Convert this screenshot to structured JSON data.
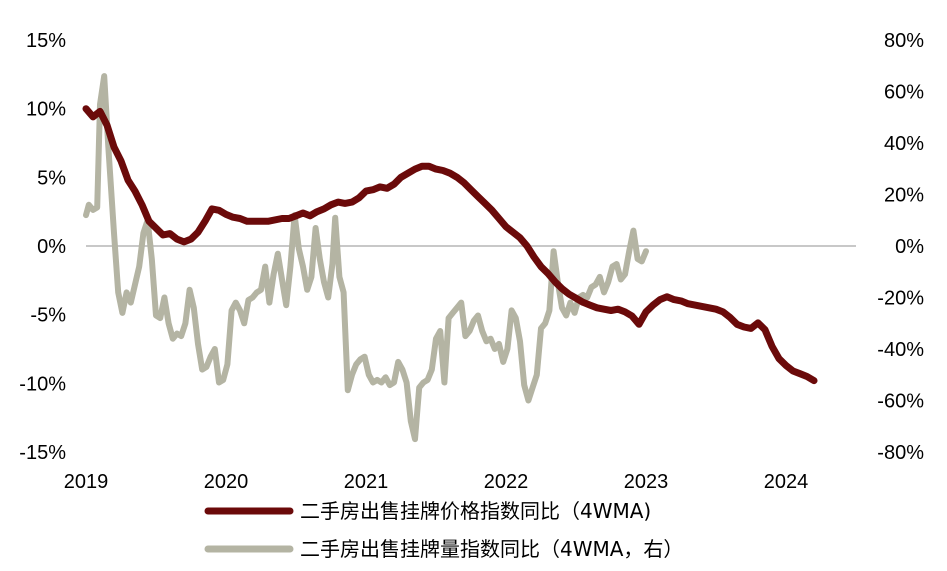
{
  "chart_data": {
    "type": "line",
    "title": "",
    "xlabel": "",
    "ylabel": "",
    "x_tick_labels": [
      "2019",
      "2020",
      "2021",
      "2022",
      "2023",
      "2024"
    ],
    "x_range": [
      2019.0,
      2024.5
    ],
    "y_left": {
      "range": [
        -15,
        15
      ],
      "ticks": [
        15,
        10,
        5,
        0,
        -5,
        -10,
        -15
      ],
      "tick_labels": [
        "15%",
        "10%",
        "5%",
        "0%",
        "-5%",
        "-10%",
        "-15%"
      ]
    },
    "y_right": {
      "range": [
        -80,
        80
      ],
      "ticks": [
        80,
        60,
        40,
        20,
        0,
        -20,
        -40,
        -60,
        -80
      ],
      "tick_labels": [
        "80%",
        "60%",
        "40%",
        "20%",
        "0%",
        "-20%",
        "-40%",
        "-60%",
        "-80%"
      ]
    },
    "grid": false,
    "legend_position": "bottom",
    "series": [
      {
        "name": "二手房出售挂牌价格指数同比（4WMA)",
        "axis": "left",
        "color": "#6b0a0a",
        "points": [
          [
            2019.0,
            10.0
          ],
          [
            2019.05,
            9.4
          ],
          [
            2019.1,
            9.8
          ],
          [
            2019.15,
            8.8
          ],
          [
            2019.2,
            7.2
          ],
          [
            2019.25,
            6.2
          ],
          [
            2019.3,
            4.8
          ],
          [
            2019.35,
            4.0
          ],
          [
            2019.4,
            3.0
          ],
          [
            2019.45,
            1.8
          ],
          [
            2019.5,
            1.3
          ],
          [
            2019.55,
            0.8
          ],
          [
            2019.6,
            0.9
          ],
          [
            2019.65,
            0.5
          ],
          [
            2019.7,
            0.3
          ],
          [
            2019.75,
            0.5
          ],
          [
            2019.8,
            1.0
          ],
          [
            2019.85,
            1.8
          ],
          [
            2019.9,
            2.7
          ],
          [
            2019.95,
            2.6
          ],
          [
            2020.0,
            2.3
          ],
          [
            2020.05,
            2.1
          ],
          [
            2020.1,
            2.0
          ],
          [
            2020.15,
            1.8
          ],
          [
            2020.2,
            1.8
          ],
          [
            2020.3,
            1.8
          ],
          [
            2020.4,
            2.0
          ],
          [
            2020.45,
            2.0
          ],
          [
            2020.5,
            2.2
          ],
          [
            2020.55,
            2.4
          ],
          [
            2020.6,
            2.2
          ],
          [
            2020.65,
            2.5
          ],
          [
            2020.7,
            2.7
          ],
          [
            2020.75,
            3.0
          ],
          [
            2020.8,
            3.2
          ],
          [
            2020.85,
            3.1
          ],
          [
            2020.9,
            3.2
          ],
          [
            2020.95,
            3.5
          ],
          [
            2021.0,
            4.0
          ],
          [
            2021.05,
            4.1
          ],
          [
            2021.1,
            4.3
          ],
          [
            2021.15,
            4.2
          ],
          [
            2021.2,
            4.5
          ],
          [
            2021.25,
            5.0
          ],
          [
            2021.3,
            5.3
          ],
          [
            2021.35,
            5.6
          ],
          [
            2021.4,
            5.8
          ],
          [
            2021.45,
            5.8
          ],
          [
            2021.5,
            5.6
          ],
          [
            2021.55,
            5.5
          ],
          [
            2021.6,
            5.3
          ],
          [
            2021.65,
            5.0
          ],
          [
            2021.7,
            4.6
          ],
          [
            2021.75,
            4.1
          ],
          [
            2021.8,
            3.6
          ],
          [
            2021.85,
            3.1
          ],
          [
            2021.9,
            2.6
          ],
          [
            2021.95,
            2.0
          ],
          [
            2022.0,
            1.4
          ],
          [
            2022.05,
            1.0
          ],
          [
            2022.1,
            0.6
          ],
          [
            2022.15,
            0.0
          ],
          [
            2022.2,
            -0.8
          ],
          [
            2022.25,
            -1.5
          ],
          [
            2022.3,
            -2.0
          ],
          [
            2022.35,
            -2.6
          ],
          [
            2022.4,
            -3.1
          ],
          [
            2022.45,
            -3.5
          ],
          [
            2022.5,
            -3.8
          ],
          [
            2022.55,
            -4.1
          ],
          [
            2022.6,
            -4.3
          ],
          [
            2022.65,
            -4.5
          ],
          [
            2022.7,
            -4.6
          ],
          [
            2022.75,
            -4.7
          ],
          [
            2022.8,
            -4.6
          ],
          [
            2022.85,
            -4.8
          ],
          [
            2022.9,
            -5.1
          ],
          [
            2022.95,
            -5.7
          ],
          [
            2023.0,
            -4.8
          ],
          [
            2023.05,
            -4.3
          ],
          [
            2023.1,
            -3.9
          ],
          [
            2023.15,
            -3.7
          ],
          [
            2023.2,
            -3.9
          ],
          [
            2023.25,
            -4.0
          ],
          [
            2023.3,
            -4.2
          ],
          [
            2023.35,
            -4.3
          ],
          [
            2023.4,
            -4.4
          ],
          [
            2023.45,
            -4.5
          ],
          [
            2023.5,
            -4.6
          ],
          [
            2023.55,
            -4.8
          ],
          [
            2023.6,
            -5.2
          ],
          [
            2023.65,
            -5.7
          ],
          [
            2023.7,
            -5.9
          ],
          [
            2023.75,
            -6.0
          ],
          [
            2023.8,
            -5.6
          ],
          [
            2023.85,
            -6.1
          ],
          [
            2023.9,
            -7.3
          ],
          [
            2023.95,
            -8.2
          ],
          [
            2024.0,
            -8.7
          ],
          [
            2024.05,
            -9.1
          ],
          [
            2024.1,
            -9.3
          ],
          [
            2024.15,
            -9.5
          ],
          [
            2024.2,
            -9.8
          ]
        ]
      },
      {
        "name": "二手房出售挂牌量指数同比（4WMA，右）",
        "axis": "right",
        "color": "#b4b4a3",
        "points": [
          [
            2019.0,
            12
          ],
          [
            2019.02,
            16
          ],
          [
            2019.05,
            14
          ],
          [
            2019.08,
            15
          ],
          [
            2019.1,
            55
          ],
          [
            2019.13,
            66
          ],
          [
            2019.16,
            38
          ],
          [
            2019.2,
            5
          ],
          [
            2019.23,
            -18
          ],
          [
            2019.26,
            -26
          ],
          [
            2019.29,
            -18
          ],
          [
            2019.32,
            -22
          ],
          [
            2019.35,
            -15
          ],
          [
            2019.38,
            -8
          ],
          [
            2019.41,
            5
          ],
          [
            2019.44,
            10
          ],
          [
            2019.47,
            -5
          ],
          [
            2019.5,
            -27
          ],
          [
            2019.53,
            -28
          ],
          [
            2019.56,
            -20
          ],
          [
            2019.59,
            -30
          ],
          [
            2019.62,
            -36
          ],
          [
            2019.65,
            -34
          ],
          [
            2019.68,
            -35
          ],
          [
            2019.71,
            -30
          ],
          [
            2019.74,
            -17
          ],
          [
            2019.77,
            -24
          ],
          [
            2019.8,
            -38
          ],
          [
            2019.83,
            -48
          ],
          [
            2019.86,
            -47
          ],
          [
            2019.89,
            -43
          ],
          [
            2019.92,
            -40
          ],
          [
            2019.95,
            -53
          ],
          [
            2019.98,
            -52
          ],
          [
            2020.01,
            -46
          ],
          [
            2020.04,
            -25
          ],
          [
            2020.07,
            -22
          ],
          [
            2020.1,
            -25
          ],
          [
            2020.13,
            -30
          ],
          [
            2020.16,
            -21
          ],
          [
            2020.19,
            -20
          ],
          [
            2020.22,
            -18
          ],
          [
            2020.25,
            -17
          ],
          [
            2020.28,
            -8
          ],
          [
            2020.31,
            -22
          ],
          [
            2020.34,
            -11
          ],
          [
            2020.37,
            -3
          ],
          [
            2020.4,
            -13
          ],
          [
            2020.43,
            -23
          ],
          [
            2020.46,
            -8
          ],
          [
            2020.49,
            12
          ],
          [
            2020.52,
            -1
          ],
          [
            2020.55,
            -8
          ],
          [
            2020.58,
            -17
          ],
          [
            2020.61,
            -12
          ],
          [
            2020.64,
            7
          ],
          [
            2020.67,
            -5
          ],
          [
            2020.7,
            -14
          ],
          [
            2020.73,
            -20
          ],
          [
            2020.76,
            -7
          ],
          [
            2020.78,
            11
          ],
          [
            2020.81,
            -12
          ],
          [
            2020.84,
            -18
          ],
          [
            2020.87,
            -56
          ],
          [
            2020.9,
            -50
          ],
          [
            2020.93,
            -46
          ],
          [
            2020.96,
            -44
          ],
          [
            2020.99,
            -43
          ],
          [
            2021.02,
            -50
          ],
          [
            2021.05,
            -53
          ],
          [
            2021.08,
            -52
          ],
          [
            2021.11,
            -53
          ],
          [
            2021.14,
            -51
          ],
          [
            2021.17,
            -54
          ],
          [
            2021.2,
            -53
          ],
          [
            2021.23,
            -45
          ],
          [
            2021.26,
            -48
          ],
          [
            2021.29,
            -53
          ],
          [
            2021.32,
            -68
          ],
          [
            2021.35,
            -75
          ],
          [
            2021.38,
            -55
          ],
          [
            2021.41,
            -53
          ],
          [
            2021.44,
            -52
          ],
          [
            2021.47,
            -48
          ],
          [
            2021.5,
            -36
          ],
          [
            2021.53,
            -33
          ],
          [
            2021.56,
            -53
          ],
          [
            2021.59,
            -28
          ],
          [
            2021.62,
            -26
          ],
          [
            2021.65,
            -24
          ],
          [
            2021.68,
            -22
          ],
          [
            2021.71,
            -35
          ],
          [
            2021.74,
            -33
          ],
          [
            2021.77,
            -29
          ],
          [
            2021.8,
            -27
          ],
          [
            2021.83,
            -33
          ],
          [
            2021.86,
            -37
          ],
          [
            2021.89,
            -36
          ],
          [
            2021.92,
            -40
          ],
          [
            2021.95,
            -38
          ],
          [
            2021.98,
            -45
          ],
          [
            2022.01,
            -40
          ],
          [
            2022.04,
            -25
          ],
          [
            2022.07,
            -28
          ],
          [
            2022.1,
            -37
          ],
          [
            2022.13,
            -54
          ],
          [
            2022.16,
            -60
          ],
          [
            2022.19,
            -55
          ],
          [
            2022.22,
            -50
          ],
          [
            2022.25,
            -32
          ],
          [
            2022.28,
            -30
          ],
          [
            2022.31,
            -25
          ],
          [
            2022.34,
            -2
          ],
          [
            2022.37,
            -14
          ],
          [
            2022.4,
            -24
          ],
          [
            2022.43,
            -27
          ],
          [
            2022.46,
            -22
          ],
          [
            2022.49,
            -26
          ],
          [
            2022.52,
            -20
          ],
          [
            2022.55,
            -19
          ],
          [
            2022.58,
            -20
          ],
          [
            2022.61,
            -16
          ],
          [
            2022.64,
            -15
          ],
          [
            2022.67,
            -12
          ],
          [
            2022.7,
            -18
          ],
          [
            2022.73,
            -14
          ],
          [
            2022.76,
            -8
          ],
          [
            2022.79,
            -7
          ],
          [
            2022.82,
            -13
          ],
          [
            2022.85,
            -11
          ],
          [
            2022.88,
            -2
          ],
          [
            2022.91,
            6
          ],
          [
            2022.94,
            -5
          ],
          [
            2022.97,
            -6
          ],
          [
            2023.0,
            -2
          ]
        ]
      }
    ]
  }
}
